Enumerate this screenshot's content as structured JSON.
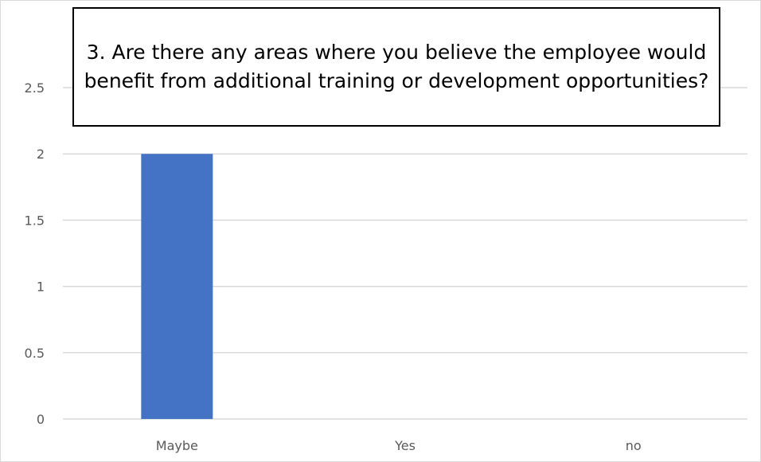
{
  "chart_data": {
    "type": "bar",
    "title": "3. Are there any areas where you believe the employee would benefit from additional training or development opportunities?",
    "categories": [
      "Maybe",
      "Yes",
      "no"
    ],
    "values": [
      2,
      0,
      0
    ],
    "ylim": [
      0,
      2.5
    ],
    "yticks": [
      0,
      0.5,
      1,
      1.5,
      2,
      2.5
    ],
    "ytick_labels": [
      "0",
      "0.5",
      "1",
      "1.5",
      "2",
      "2.5"
    ],
    "xlabel": "",
    "ylabel": "",
    "grid": true,
    "legend": false,
    "colors": {
      "bar": "#4472C4",
      "grid": "#d9d9d9",
      "tick_text": "#595959"
    }
  }
}
